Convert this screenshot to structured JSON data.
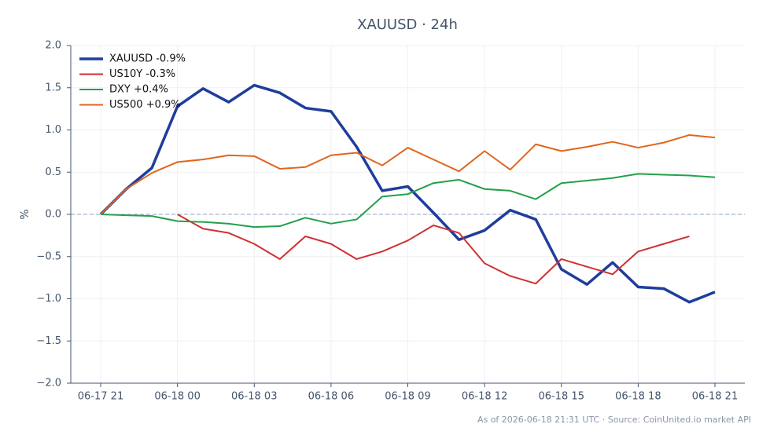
{
  "chart_data": {
    "type": "line",
    "title": "XAUUSD · 24h",
    "ylabel": "%",
    "footnote": "As of 2026-06-18 21:31 UTC · Source: CoinUnited.io market API",
    "categories": [
      "06-17 21",
      null,
      null,
      "06-18 00",
      null,
      null,
      "06-18 03",
      null,
      null,
      "06-18 06",
      null,
      null,
      "06-18 09",
      null,
      null,
      "06-18 12",
      null,
      null,
      "06-18 15",
      null,
      null,
      "06-18 18",
      null,
      null,
      "06-18 21"
    ],
    "series": [
      {
        "name": "XAUUSD -0.9%",
        "color": "#1f3d9c",
        "linewidth": 3.5,
        "values": [
          0,
          0.3,
          0.55,
          1.28,
          1.49,
          1.33,
          1.53,
          1.44,
          1.26,
          1.22,
          0.8,
          0.28,
          0.33,
          0.02,
          -0.3,
          -0.19,
          0.05,
          -0.06,
          -0.65,
          -0.83,
          -0.57,
          -0.86,
          -0.88,
          -1.04,
          -0.92
        ]
      },
      {
        "name": "US10Y -0.3%",
        "color": "#d03030",
        "linewidth": 2,
        "values": [
          null,
          null,
          null,
          0,
          -0.17,
          -0.22,
          -0.35,
          -0.53,
          -0.26,
          -0.35,
          -0.53,
          -0.44,
          -0.31,
          -0.13,
          -0.22,
          -0.58,
          -0.73,
          -0.82,
          -0.53,
          -0.62,
          -0.71,
          -0.44,
          -0.35,
          -0.26,
          null
        ]
      },
      {
        "name": "DXY +0.4%",
        "color": "#23a04a",
        "linewidth": 2,
        "values": [
          0,
          -0.01,
          -0.02,
          -0.08,
          -0.09,
          -0.11,
          -0.15,
          -0.14,
          -0.04,
          -0.11,
          -0.06,
          0.21,
          0.24,
          0.37,
          0.41,
          0.3,
          0.28,
          0.18,
          0.37,
          0.4,
          0.43,
          0.48,
          0.47,
          0.46,
          0.44
        ]
      },
      {
        "name": "US500 +0.9%",
        "color": "#e0661c",
        "linewidth": 2,
        "values": [
          0,
          0.3,
          0.49,
          0.62,
          0.65,
          0.7,
          0.69,
          0.54,
          0.56,
          0.7,
          0.73,
          0.58,
          0.79,
          0.65,
          0.51,
          0.75,
          0.53,
          0.83,
          0.75,
          0.8,
          0.86,
          0.79,
          0.85,
          0.94,
          0.91
        ]
      }
    ],
    "ylim": [
      -2,
      2
    ],
    "yticks": [
      {
        "value": -2,
        "label": "−2.0"
      },
      {
        "value": -1.5,
        "label": "−1.5"
      },
      {
        "value": -1,
        "label": "−1.0"
      },
      {
        "value": -0.5,
        "label": "−0.5"
      },
      {
        "value": 0,
        "label": "0.0"
      },
      0.5,
      {
        "value": 1,
        "label": "1.0"
      },
      1.5,
      {
        "value": 2,
        "label": "2.0"
      }
    ],
    "grid": true,
    "zero_line": true,
    "legend": "upper left"
  }
}
